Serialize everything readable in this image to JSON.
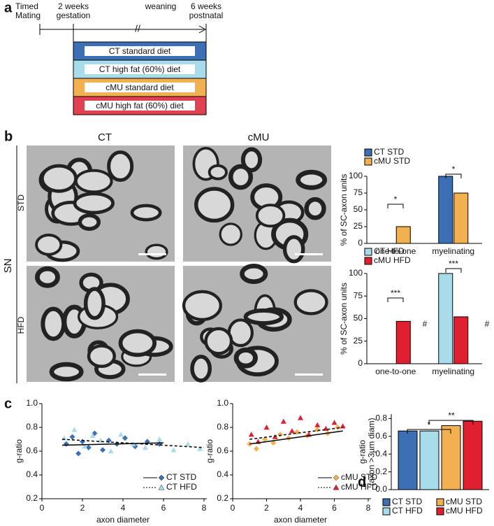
{
  "panel_labels": [
    "a",
    "b",
    "c",
    "d"
  ],
  "timeline": {
    "events": [
      [
        "Timed",
        "Mating"
      ],
      [
        "2 weeks",
        "gestation"
      ],
      [
        "weaning"
      ],
      [
        "6 weeks",
        "postnatal"
      ]
    ],
    "break_mark": "//",
    "groups": [
      "CT standard diet",
      "CT high fat (60%) diet",
      "cMU standard diet",
      "cMU high fat (60%) diet"
    ]
  },
  "micrographs": {
    "columns": [
      "CT",
      "cMU"
    ],
    "rows": [
      "STD",
      "HFD"
    ],
    "tissue": "SN"
  },
  "chart_data": [
    {
      "type": "bar",
      "ylabel": "% of SC-axon units",
      "categories": [
        "one-to-one",
        "myelinating"
      ],
      "series": [
        {
          "name": "CT STD",
          "color": "#3d6fb5",
          "values": [
            0,
            100
          ]
        },
        {
          "name": "cMU STD",
          "color": "#f2b050",
          "values": [
            25,
            75
          ]
        }
      ],
      "ylim": [
        0,
        100
      ],
      "yticks": [
        0,
        25,
        50,
        75,
        100
      ],
      "annotations": [
        "*",
        "*"
      ]
    },
    {
      "type": "bar",
      "ylabel": "% of SC-axon units",
      "categories": [
        "one-to-one",
        "myelinating"
      ],
      "series": [
        {
          "name": "CT HFD",
          "color": "#a9dcea",
          "values": [
            0,
            100
          ]
        },
        {
          "name": "cMU HFD",
          "color": "#e02030",
          "values": [
            47,
            52
          ]
        }
      ],
      "ylim": [
        0,
        100
      ],
      "yticks": [
        0,
        25,
        50,
        75,
        100
      ],
      "annotations": [
        "***",
        "***",
        "#",
        "#"
      ]
    },
    {
      "type": "scatter",
      "ylabel": "g-ratio",
      "xlabel": "axon diameter",
      "xlim": [
        0,
        8
      ],
      "xticks": [
        0,
        2,
        4,
        6,
        8
      ],
      "ylim": [
        0.2,
        1.0
      ],
      "yticks": [
        0.2,
        0.4,
        0.6,
        0.8,
        {
          "value": 1,
          "label": "1.0"
        }
      ],
      "series": [
        {
          "name": "CT STD",
          "color": "#3d6fb5",
          "marker": "diamond",
          "line_style": "solid",
          "x": [
            1.2,
            1.5,
            1.8,
            2.0,
            2.3,
            2.6,
            3.0,
            3.3,
            3.7,
            4.1,
            4.6,
            5.2,
            5.8
          ],
          "values": [
            0.66,
            0.72,
            0.58,
            0.68,
            0.63,
            0.75,
            0.61,
            0.69,
            0.66,
            0.71,
            0.64,
            0.68,
            0.66
          ],
          "fit": {
            "x": [
              1,
              6
            ],
            "values": [
              0.65,
              0.67
            ]
          }
        },
        {
          "name": "CT HFD",
          "color": "#a9dcea",
          "marker": "triangle",
          "line_style": "dashed",
          "x": [
            1.1,
            1.6,
            2.1,
            2.5,
            2.9,
            3.4,
            3.9,
            4.5,
            5.1,
            5.8,
            6.5,
            7.2,
            7.8
          ],
          "values": [
            0.71,
            0.78,
            0.64,
            0.73,
            0.69,
            0.6,
            0.74,
            0.66,
            0.63,
            0.7,
            0.61,
            0.66,
            0.62
          ],
          "fit": {
            "x": [
              1,
              8
            ],
            "values": [
              0.7,
              0.63
            ]
          }
        }
      ]
    },
    {
      "type": "scatter",
      "ylabel": "g-ratio",
      "xlabel": "axon diameter",
      "xlim": [
        0,
        8
      ],
      "xticks": [
        0,
        2,
        4,
        6,
        8
      ],
      "ylim": [
        0.2,
        1.0
      ],
      "yticks": [
        0.2,
        0.4,
        0.6,
        0.8,
        {
          "value": 1,
          "label": "1.0"
        }
      ],
      "series": [
        {
          "name": "cMU STD",
          "color": "#f2b050",
          "marker": "diamond",
          "line_style": "solid",
          "x": [
            1.0,
            1.4,
            1.9,
            2.4,
            2.8,
            3.3,
            3.8,
            4.4,
            5.0,
            5.6,
            6.2
          ],
          "values": [
            0.66,
            0.62,
            0.7,
            0.67,
            0.74,
            0.71,
            0.76,
            0.73,
            0.78,
            0.75,
            0.8
          ],
          "fit": {
            "x": [
              1,
              6.5
            ],
            "values": [
              0.66,
              0.77
            ]
          }
        },
        {
          "name": "cMU HFD",
          "color": "#e02030",
          "marker": "triangle",
          "line_style": "dashed",
          "x": [
            1.1,
            1.5,
            2.0,
            2.5,
            3.0,
            3.5,
            4.0,
            4.5,
            5.0,
            5.5,
            6.0,
            6.5
          ],
          "values": [
            0.74,
            0.68,
            0.8,
            0.72,
            0.85,
            0.77,
            0.88,
            0.74,
            0.82,
            0.79,
            0.84,
            0.81
          ],
          "fit": {
            "x": [
              1,
              6.5
            ],
            "values": [
              0.7,
              0.8
            ]
          }
        }
      ]
    },
    {
      "type": "bar",
      "ylabel": [
        "g-ratio",
        "(axon >3µm diam)"
      ],
      "categories": [
        null
      ],
      "series": [
        {
          "name": "CT STD",
          "color": "#3d6fb5",
          "values": [
            0.66
          ]
        },
        {
          "name": "CT HFD",
          "color": "#a9dcea",
          "values": [
            0.66
          ]
        },
        {
          "name": "cMU STD",
          "color": "#f2b050",
          "values": [
            0.72
          ]
        },
        {
          "name": "cMU HFD",
          "color": "#e02030",
          "values": [
            0.77
          ]
        }
      ],
      "ylim": [
        0,
        0.85
      ],
      "yticks": [
        {
          "value": 0,
          "label": "0.0"
        },
        0.2,
        0.4,
        0.6,
        0.8
      ],
      "annotations": [
        "*",
        "**"
      ]
    }
  ]
}
